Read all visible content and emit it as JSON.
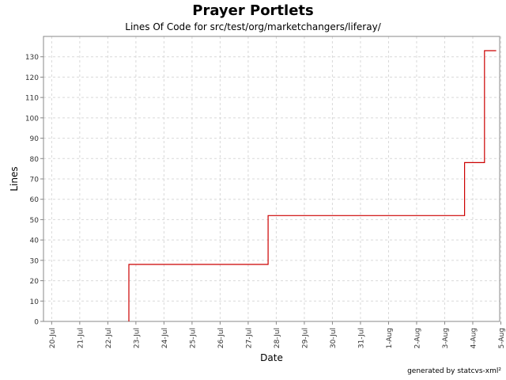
{
  "title": "Prayer Portlets",
  "subtitle": "Lines Of Code for src/test/org/marketchangers/liferay/",
  "footer": "generated by statcvs-xml²",
  "chart_data": {
    "type": "line",
    "step": true,
    "xlabel": "Date",
    "ylabel": "Lines",
    "x_ticks": [
      "20-Jul",
      "21-Jul",
      "22-Jul",
      "23-Jul",
      "24-Jul",
      "25-Jul",
      "26-Jul",
      "27-Jul",
      "28-Jul",
      "29-Jul",
      "30-Jul",
      "31-Jul",
      "1-Aug",
      "2-Aug",
      "3-Aug",
      "4-Aug",
      "5-Aug"
    ],
    "xlim": [
      "2005-07-19T17:00",
      "2005-08-04T23:00"
    ],
    "ylim": [
      0,
      140
    ],
    "y_ticks": [
      0,
      10,
      20,
      30,
      40,
      50,
      60,
      70,
      80,
      90,
      100,
      110,
      120,
      130
    ],
    "grid": true,
    "line_color": "#cc0000",
    "series": [
      {
        "points": [
          {
            "x": "2005-07-22T18:00",
            "y": 0
          },
          {
            "x": "2005-07-22T18:00",
            "y": 28
          },
          {
            "x": "2005-07-27T17:00",
            "y": 28
          },
          {
            "x": "2005-07-27T17:00",
            "y": 52
          },
          {
            "x": "2005-08-03T17:00",
            "y": 52
          },
          {
            "x": "2005-08-03T17:00",
            "y": 78
          },
          {
            "x": "2005-08-04T10:00",
            "y": 78
          },
          {
            "x": "2005-08-04T10:00",
            "y": 133
          },
          {
            "x": "2005-08-04T20:00",
            "y": 133
          }
        ]
      }
    ]
  }
}
